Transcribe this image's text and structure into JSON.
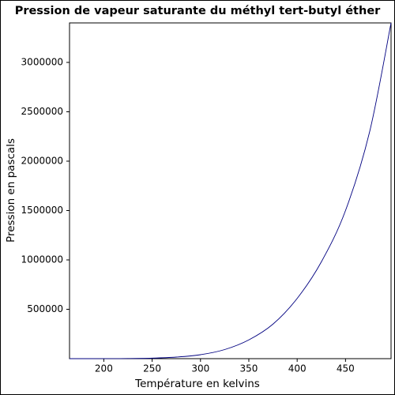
{
  "chart_data": {
    "type": "line",
    "title": "Pression de vapeur saturante du méthyl tert-butyl éther",
    "x_label": "Température en kelvins",
    "y_label": "Pression en pascals",
    "x": [
      164.55,
      200,
      225,
      250,
      275,
      300,
      325,
      350,
      375,
      400,
      425,
      450,
      475,
      497.1
    ],
    "values": [
      6,
      170,
      1100,
      5000,
      16000,
      40000,
      92000,
      190000,
      350000,
      610000,
      980000,
      1500000,
      2300000,
      3400000
    ],
    "color": "#000080",
    "xlim": [
      164.55,
      497.1
    ],
    "ylim": [
      0,
      3400000
    ],
    "xticks": [
      200,
      250,
      300,
      350,
      400,
      450
    ],
    "yticks": [
      500000,
      1000000,
      1500000,
      2000000,
      2500000,
      3000000
    ],
    "grid": false
  }
}
